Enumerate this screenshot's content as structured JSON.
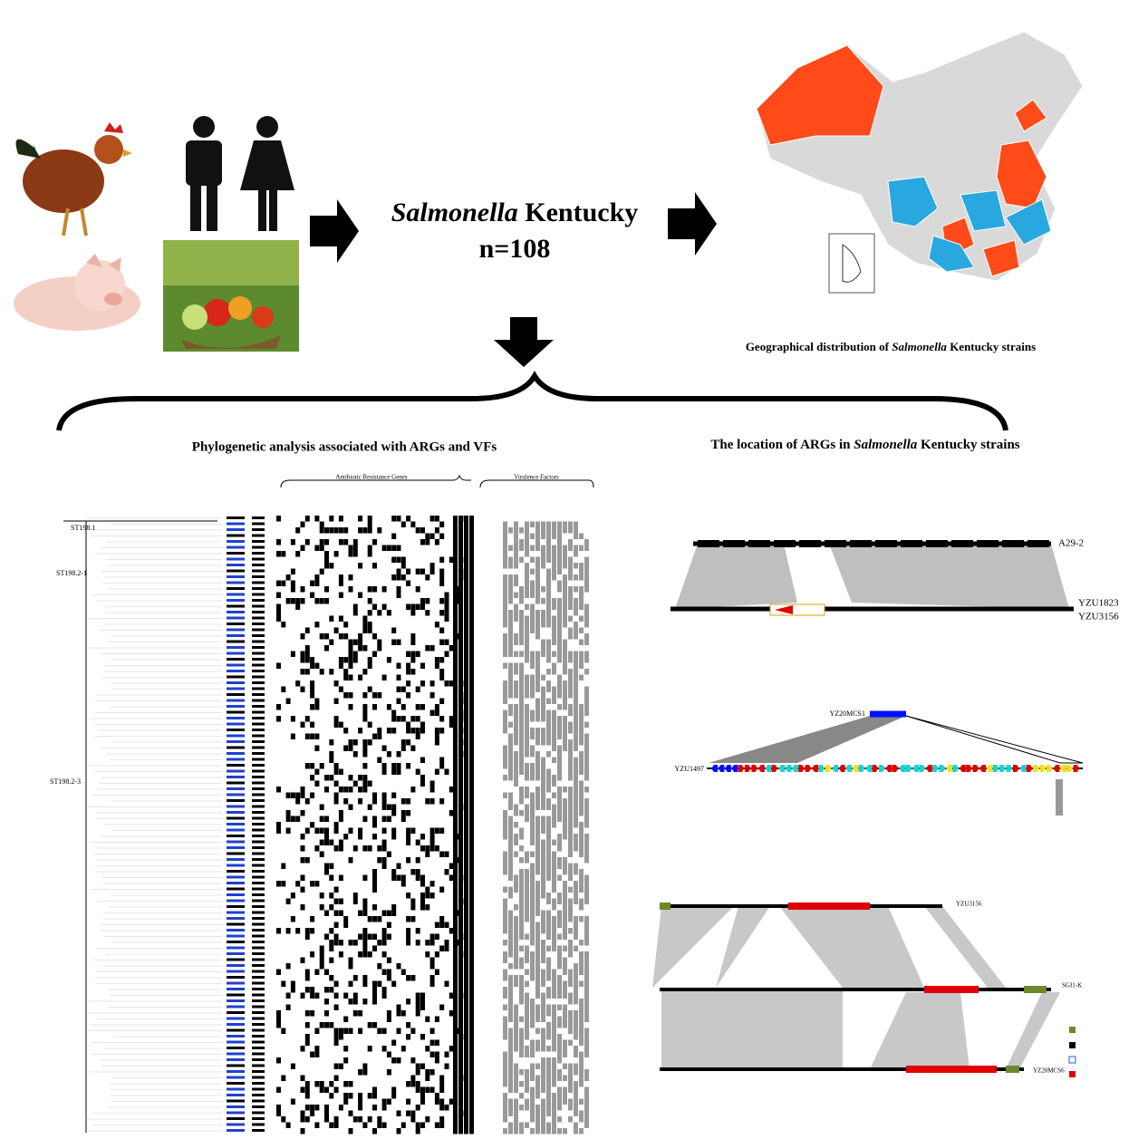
{
  "center": {
    "italic": "Salmonella",
    "rest": "Kentucky",
    "count": "n=108"
  },
  "map_caption": {
    "before": "Geographical distribution of",
    "italic": "Salmonella",
    "after": "Kentucky strains"
  },
  "left_heading": "Phylogenetic analysis associated with ARGs and VFs",
  "right_heading": {
    "before": "The location of ARGs in",
    "italic": "Salmonella",
    "after": "Kentucky strains"
  },
  "heatmap": {
    "arg_label": "Antibiotic Resistance Genes",
    "vf_label": "Virulence Factors"
  },
  "clades": [
    "ST198.1",
    "ST198.2-1",
    "ST198.2-3"
  ],
  "panel_a": {
    "top": "A29-2",
    "bottom1": "YZU1823",
    "bottom2": "YZU3156"
  },
  "panel_b": {
    "top": "YZ20MCS1",
    "bottom": "YZU1497"
  },
  "panel_c": {
    "top": "YZU3156",
    "middle": "SGI1-K",
    "bottom": "YZ20MCS6"
  }
}
